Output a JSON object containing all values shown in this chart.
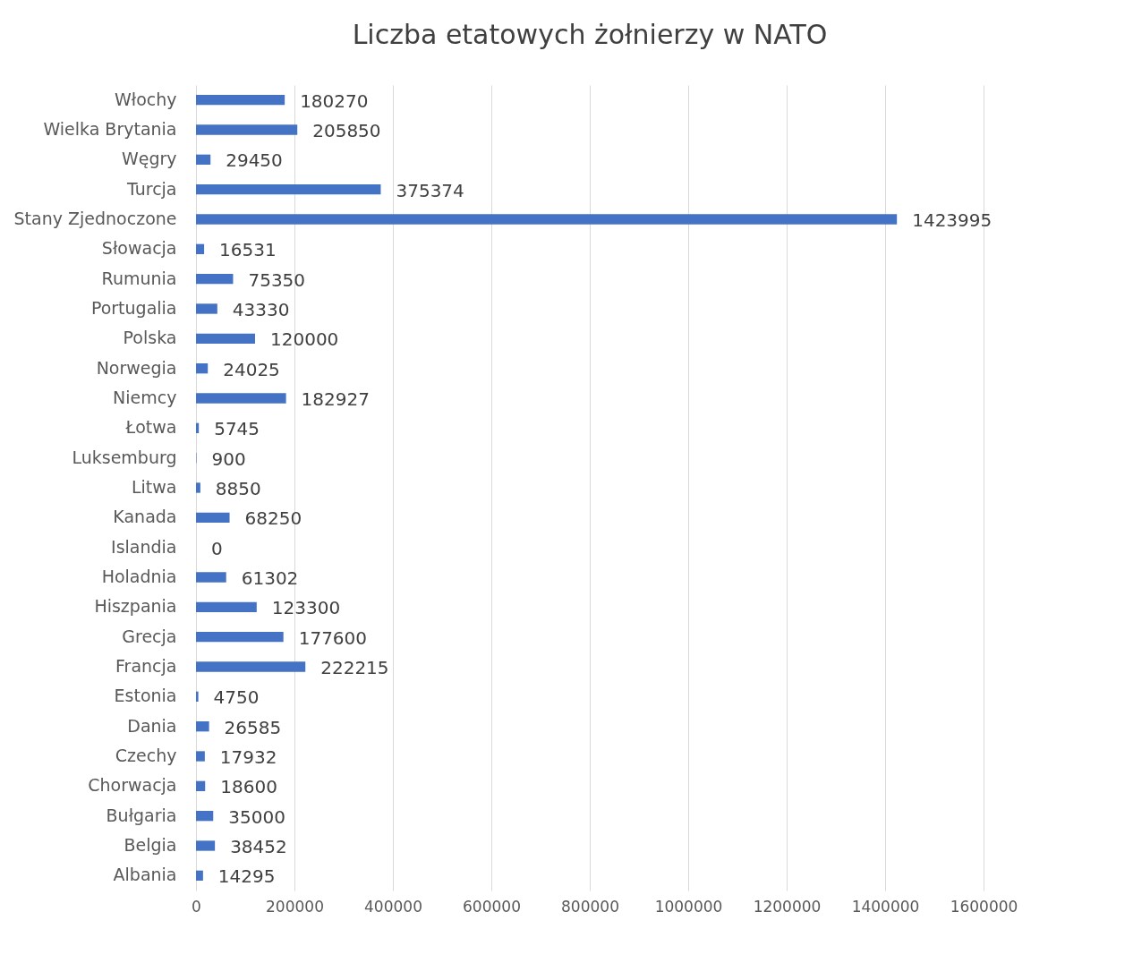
{
  "chart_data": {
    "type": "bar",
    "orientation": "horizontal",
    "title": "Liczba etatowych żołnierzy w NATO",
    "categories": [
      "Włochy",
      "Wielka Brytania",
      "Węgry",
      "Turcja",
      "Stany Zjednoczone",
      "Słowacja",
      "Rumunia",
      "Portugalia",
      "Polska",
      "Norwegia",
      "Niemcy",
      "Łotwa",
      "Luksemburg",
      "Litwa",
      "Kanada",
      "Islandia",
      "Holadnia",
      "Hiszpania",
      "Grecja",
      "Francja",
      "Estonia",
      "Dania",
      "Czechy",
      "Chorwacja",
      "Bułgaria",
      "Belgia",
      "Albania"
    ],
    "values": [
      180270,
      205850,
      29450,
      375374,
      1423995,
      16531,
      75350,
      43330,
      120000,
      24025,
      182927,
      5745,
      900,
      8850,
      68250,
      0,
      61302,
      123300,
      177600,
      222215,
      4750,
      26585,
      17932,
      18600,
      35000,
      38452,
      14295
    ],
    "color": "#4472c4",
    "xlim": [
      0,
      1600000
    ],
    "xticks": [
      0,
      200000,
      400000,
      600000,
      800000,
      1000000,
      1200000,
      1400000,
      1600000
    ],
    "grid": "x",
    "data_labels": true
  }
}
